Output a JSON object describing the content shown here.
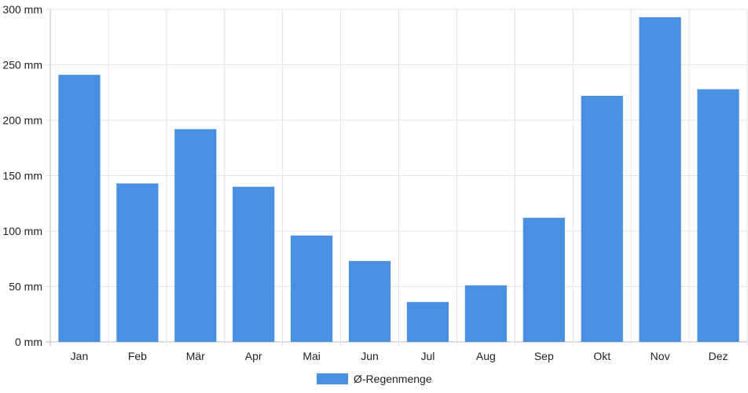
{
  "chart_data": {
    "type": "bar",
    "categories": [
      "Jan",
      "Feb",
      "Mär",
      "Apr",
      "Mai",
      "Jun",
      "Jul",
      "Aug",
      "Sep",
      "Okt",
      "Nov",
      "Dez"
    ],
    "series": [
      {
        "name": "Ø-Regenmenge",
        "values": [
          241,
          143,
          192,
          140,
          96,
          73,
          36,
          51,
          112,
          222,
          293,
          228
        ],
        "color": "#4a90e2"
      }
    ],
    "y_ticks": [
      "0 mm",
      "50 mm",
      "100 mm",
      "150 mm",
      "200 mm",
      "250 mm",
      "300 mm"
    ],
    "ylim": [
      0,
      300
    ],
    "grid": true,
    "legend_position": "bottom"
  }
}
